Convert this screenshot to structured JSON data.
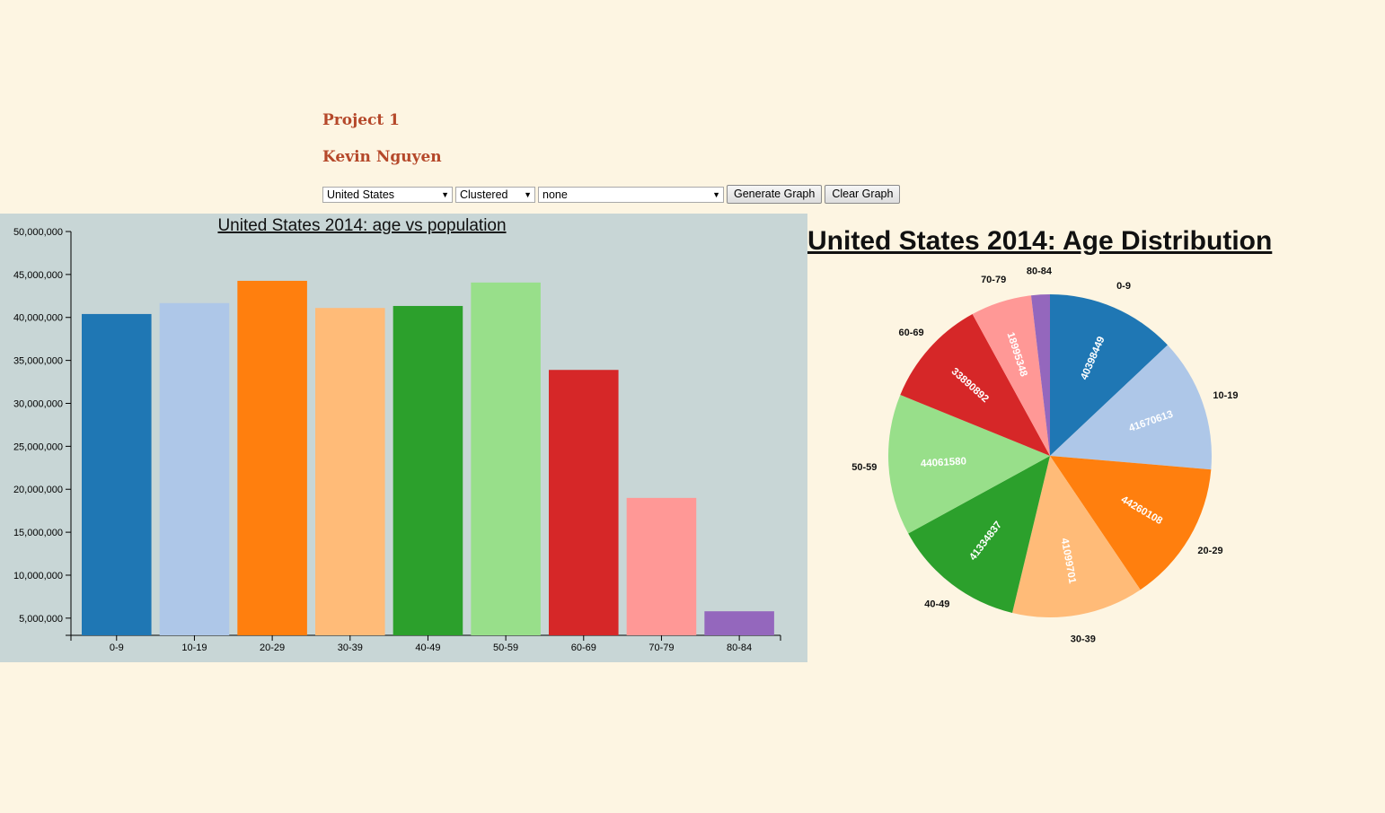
{
  "header": {
    "project": "Project 1",
    "author": "Kevin Nguyen"
  },
  "controls": {
    "country": "United States",
    "mode": "Clustered",
    "compare": "none",
    "generate_label": "Generate Graph",
    "clear_label": "Clear Graph"
  },
  "colors": [
    "#1f77b4",
    "#aec7e8",
    "#ff7f0e",
    "#ffbb78",
    "#2ca02c",
    "#98df8a",
    "#d62728",
    "#ff9896",
    "#9467bd"
  ],
  "chart_data": [
    {
      "type": "bar",
      "title": "United States 2014: age vs population",
      "categories": [
        "0-9",
        "10-19",
        "20-29",
        "30-39",
        "40-49",
        "50-59",
        "60-69",
        "70-79",
        "80-84"
      ],
      "values": [
        40398449,
        41670613,
        44260108,
        41099701,
        41334837,
        44061580,
        33890892,
        18995348,
        5800000
      ],
      "ylim": [
        3000000,
        50000000
      ],
      "yticks": [
        5000000,
        10000000,
        15000000,
        20000000,
        25000000,
        30000000,
        35000000,
        40000000,
        45000000,
        50000000
      ],
      "grid": false
    },
    {
      "type": "pie",
      "title": "United States 2014: Age Distribution",
      "categories": [
        "0-9",
        "10-19",
        "20-29",
        "30-39",
        "40-49",
        "50-59",
        "60-69",
        "70-79",
        "80-84"
      ],
      "values": [
        40398449,
        41670613,
        44260108,
        41099701,
        41334837,
        44061580,
        33890892,
        18995348,
        5800000
      ],
      "value_labels": [
        "40398449",
        "41670613",
        "44260108",
        "41099701",
        "41334837",
        "44061580",
        "33890892",
        "18995348",
        ""
      ]
    }
  ]
}
